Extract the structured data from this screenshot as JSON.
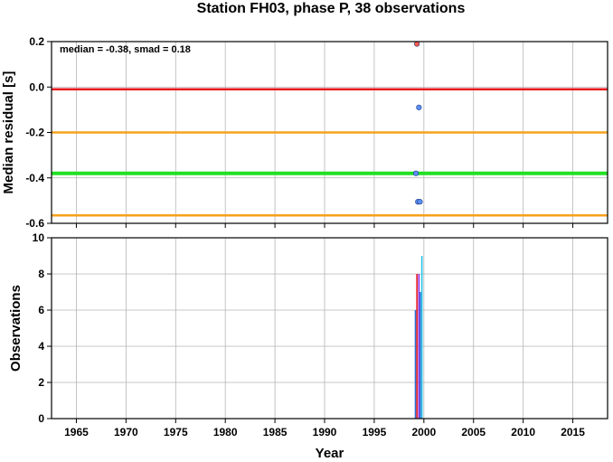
{
  "chart_data": [
    {
      "type": "scatter",
      "title": "Station FH03, phase P, 38 observations",
      "ylabel": "Median residual [s]",
      "xlim": [
        1962.5,
        2018.5
      ],
      "ylim": [
        -0.6,
        0.2
      ],
      "x_ticks": [
        "1965",
        "1970",
        "1975",
        "1980",
        "1985",
        "1990",
        "1995",
        "2000",
        "2005",
        "2010",
        "2015"
      ],
      "y_ticks": [
        "0.2",
        "0.0",
        "-0.2",
        "-0.4",
        "-0.6"
      ],
      "grid": true,
      "annotation": "median = -0.38, smad = 0.18",
      "lines": [
        {
          "y": -0.01,
          "color": "#e8191d"
        },
        {
          "y": -0.2,
          "color": "#f5a21b"
        },
        {
          "y": -0.38,
          "color": "#22e024"
        },
        {
          "y": -0.565,
          "color": "#f5a21b"
        }
      ],
      "points": [
        {
          "x": 1999.3,
          "y": 0.19,
          "color": "#ff5a4a"
        },
        {
          "x": 1999.5,
          "y": -0.09,
          "color": "#5b8ff0"
        },
        {
          "x": 1999.2,
          "y": -0.38,
          "color": "#5b8ff0"
        },
        {
          "x": 1999.4,
          "y": -0.505,
          "color": "#5b8ff0"
        },
        {
          "x": 1999.6,
          "y": -0.505,
          "color": "#5b8ff0"
        }
      ],
      "colors": {
        "point_edge": "#1a3a8a"
      }
    },
    {
      "type": "bar",
      "xlabel": "Year",
      "ylabel": "Observations",
      "xlim": [
        1962.5,
        2018.5
      ],
      "ylim": [
        0,
        10
      ],
      "x_ticks": [
        "1965",
        "1970",
        "1975",
        "1980",
        "1985",
        "1990",
        "1995",
        "2000",
        "2005",
        "2010",
        "2015"
      ],
      "y_ticks": [
        "10",
        "8",
        "6",
        "4",
        "2",
        "0"
      ],
      "grid": true,
      "bars": [
        {
          "x": 1999.15,
          "value": 6,
          "color": "#2a6fd6"
        },
        {
          "x": 1999.3,
          "value": 8,
          "color": "#e8191d"
        },
        {
          "x": 1999.5,
          "value": 8,
          "color": "#8a2be2"
        },
        {
          "x": 1999.65,
          "value": 7,
          "color": "#2a6fd6"
        },
        {
          "x": 1999.8,
          "value": 9,
          "color": "#27c4e8"
        }
      ]
    }
  ]
}
